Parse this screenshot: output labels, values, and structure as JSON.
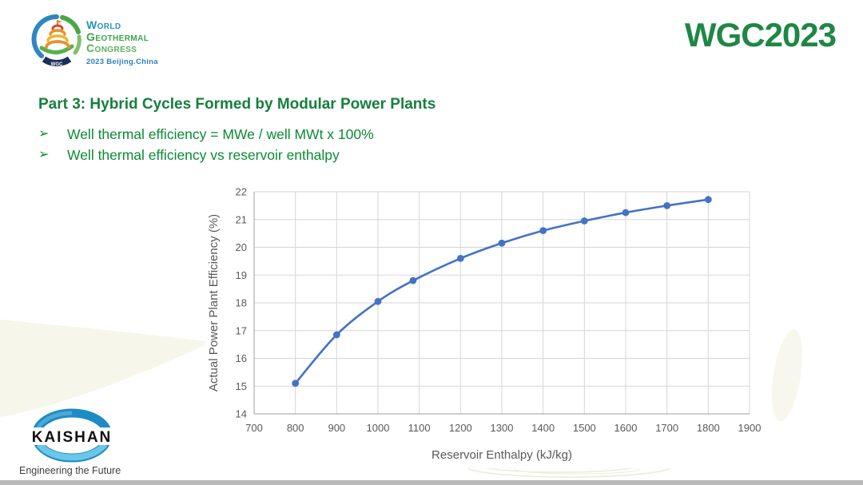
{
  "header": {
    "congress_logo": {
      "emblem_text": "WGC",
      "line1": "World",
      "line2": "Geothermal",
      "line3": "Congress",
      "subline": "2023 Beijing.China"
    },
    "brand": "WGC2023"
  },
  "slide": {
    "title": "Part 3: Hybrid Cycles Formed by Modular Power Plants",
    "bullets": [
      {
        "marker": "➢",
        "text": "Well thermal efficiency = MWe / well MWt x 100%"
      },
      {
        "marker": "➢",
        "text": "Well thermal efficiency vs reservoir enthalpy"
      }
    ]
  },
  "chart_data": {
    "type": "line",
    "title": "",
    "xlabel": "Reservoir Enthalpy (kJ/kg)",
    "ylabel": "Actual Power Plant Efficiency (%)",
    "xlim": [
      700,
      1900
    ],
    "ylim": [
      14,
      22
    ],
    "x_tick_step": 100,
    "y_tick_step": 1,
    "grid": true,
    "grid_color": "#d6d6d6",
    "axis_color": "#a0a0a0",
    "tick_label_color": "#595959",
    "line_color": "#4472C4",
    "series": [
      {
        "name": "Actual Power Plant Efficiency (%)",
        "points": [
          [
            800,
            15.1
          ],
          [
            900,
            16.85
          ],
          [
            1000,
            18.05
          ],
          [
            1085,
            18.8
          ],
          [
            1200,
            19.6
          ],
          [
            1300,
            20.15
          ],
          [
            1400,
            20.6
          ],
          [
            1500,
            20.95
          ],
          [
            1600,
            21.25
          ],
          [
            1700,
            21.5
          ],
          [
            1800,
            21.72
          ]
        ]
      }
    ]
  },
  "footer": {
    "kaishan_logo_text": "KAISHAN",
    "kaishan_tagline": "Engineering the Future"
  },
  "colors": {
    "brand_green": "#1f8745",
    "title_green": "#15803c",
    "bullet_green": "#0a8a34",
    "chart_blue": "#4472C4"
  }
}
